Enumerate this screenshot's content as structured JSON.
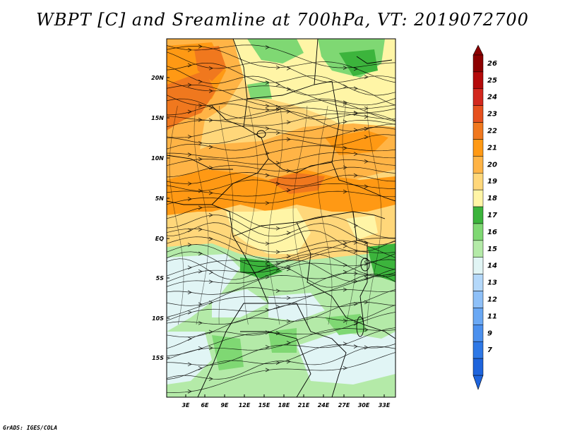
{
  "title": "WBPT [C] and Sreamline at 700hPa, VT: 2019072700",
  "footer": "GrADS: IGES/COLA",
  "map": {
    "lat_labels": [
      "20N",
      "15N",
      "10N",
      "5N",
      "EQ",
      "5S",
      "10S",
      "15S"
    ],
    "lon_labels": [
      "3E",
      "6E",
      "9E",
      "12E",
      "15E",
      "18E",
      "21E",
      "24E",
      "27E",
      "30E",
      "33E"
    ]
  },
  "colorbar": {
    "levels": [
      "7",
      "9",
      "11",
      "12",
      "13",
      "14",
      "15",
      "16",
      "17",
      "18",
      "19",
      "20",
      "21",
      "22",
      "23",
      "24",
      "25",
      "26"
    ],
    "colors": [
      "#1e64dc",
      "#2e78e6",
      "#4b90ee",
      "#6aa8f4",
      "#8ec0f8",
      "#b4d8fa",
      "#e1f5f5",
      "#b4eaa8",
      "#7fd873",
      "#3cb43c",
      "#fff5a6",
      "#ffd77a",
      "#ffb446",
      "#ff9914",
      "#f0781e",
      "#e6501e",
      "#d2281e",
      "#b40a0a",
      "#8c0000"
    ],
    "under_color": "#1e64dc",
    "over_color": "#8c0000"
  }
}
